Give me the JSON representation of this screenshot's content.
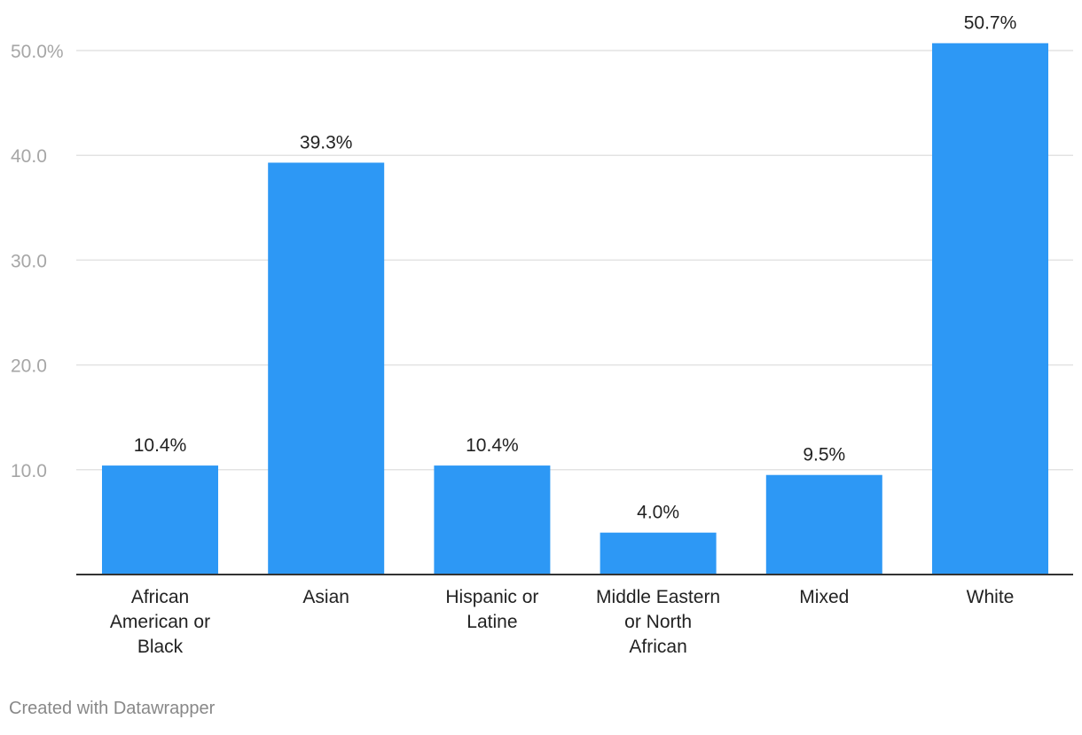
{
  "chart_data": {
    "type": "bar",
    "title": "",
    "xlabel": "",
    "ylabel": "",
    "categories": [
      "African American or Black",
      "Asian",
      "Hispanic or Latine",
      "Middle Eastern or North African",
      "Mixed",
      "White"
    ],
    "category_lines": [
      [
        "African",
        "American or",
        "Black"
      ],
      [
        "Asian"
      ],
      [
        "Hispanic or",
        "Latine"
      ],
      [
        "Middle Eastern",
        "or North",
        "African"
      ],
      [
        "Mixed"
      ],
      [
        "White"
      ]
    ],
    "values": [
      10.4,
      39.3,
      10.4,
      4.0,
      9.5,
      50.7
    ],
    "value_labels": [
      "10.4%",
      "39.3%",
      "10.4%",
      "4.0%",
      "9.5%",
      "50.7%"
    ],
    "ylim": [
      0,
      50
    ],
    "yticks": [
      10,
      20,
      30,
      40,
      50
    ],
    "ytick_labels": [
      "10.0",
      "20.0",
      "30.0",
      "40.0",
      "50.0%"
    ],
    "grid": true,
    "bar_color": "#2d98f5",
    "grid_color": "#e3e3e3",
    "axis_color": "#333333",
    "tick_label_color": "#a6a6a6",
    "text_color": "#222222"
  },
  "footer": {
    "credit": "Created with Datawrapper"
  }
}
